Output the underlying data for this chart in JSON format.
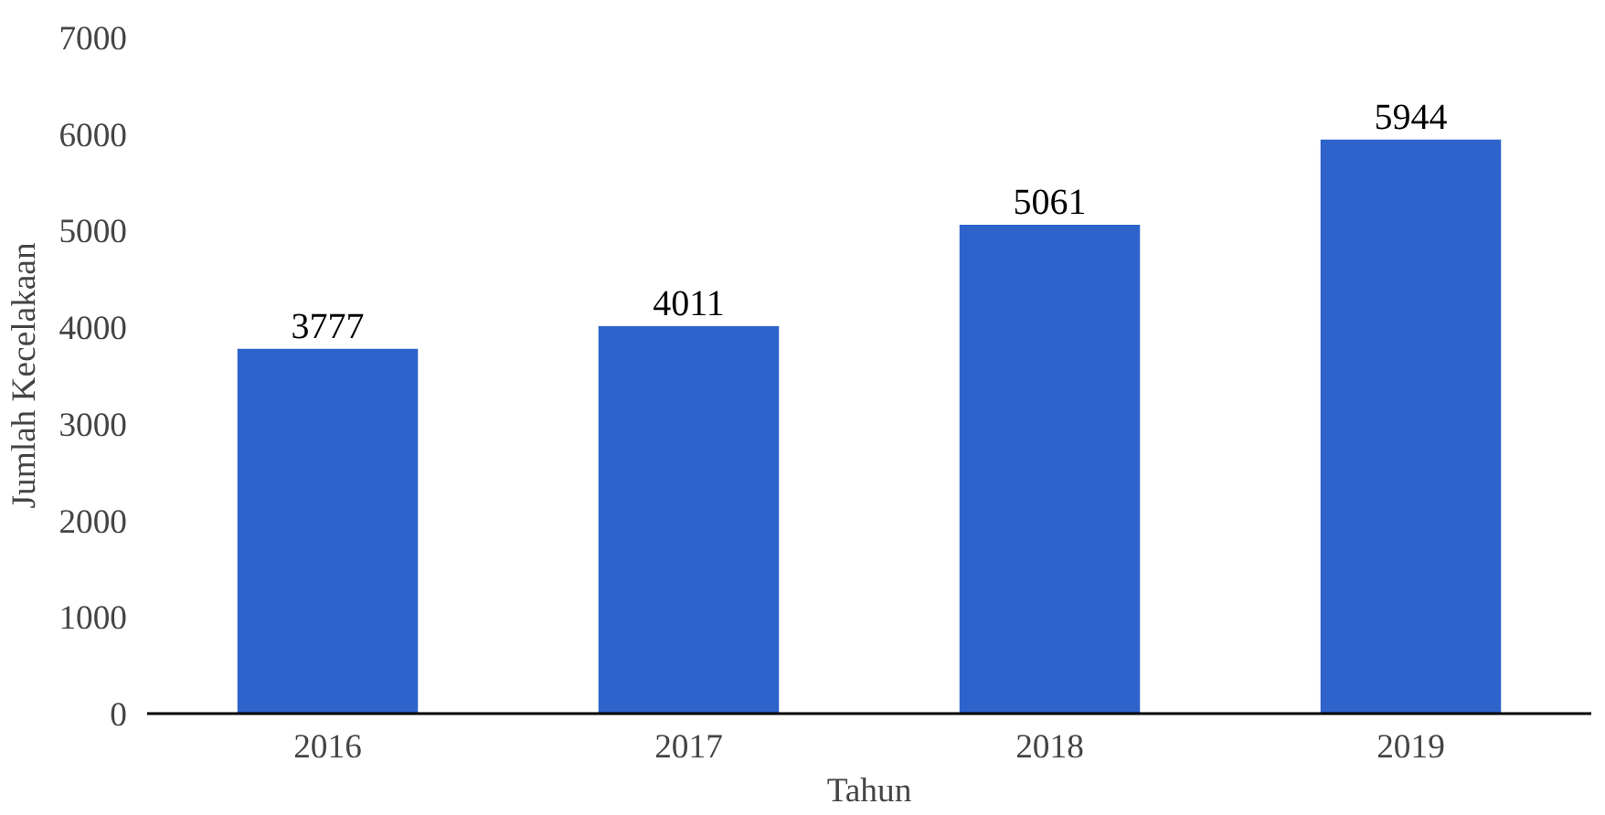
{
  "chart_data": {
    "type": "bar",
    "xlabel": "Tahun",
    "ylabel": "Jumlah Kecelakaan",
    "categories": [
      "2016",
      "2017",
      "2018",
      "2019"
    ],
    "values": [
      3777,
      4011,
      5061,
      5944
    ],
    "color": "#2e63cc",
    "ylim": [
      0,
      7000
    ],
    "yticks": [
      0,
      1000,
      2000,
      3000,
      4000,
      5000,
      6000,
      7000
    ],
    "grid": false,
    "data_labels": true
  }
}
